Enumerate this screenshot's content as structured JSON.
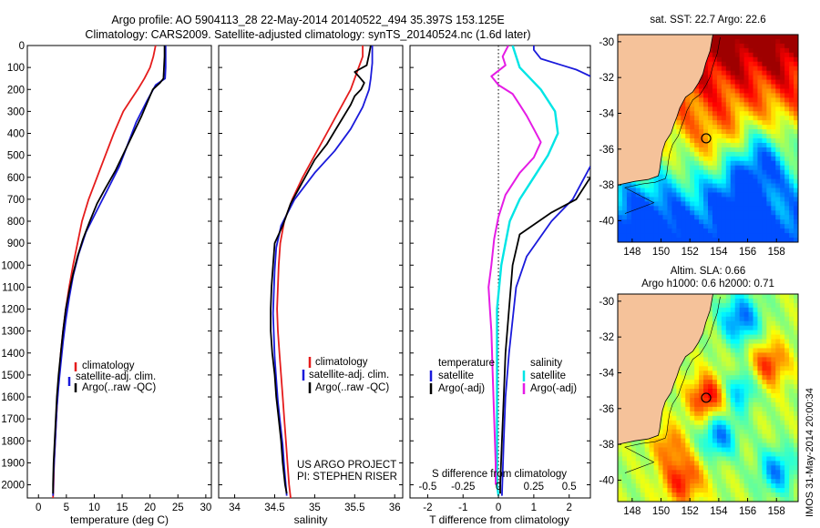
{
  "title_line1": "Argo profile: AO 5904113_28 22-May-2014 20140522_494 35.397S 153.125E",
  "title_line2": "Climatology: CARS2009. Satellite-adjusted climatology: synTS_20140524.nc (1.6d later)",
  "side_stamp": "IMOS 31-May-2014 20:00:34",
  "colors": {
    "climatology": "#e51c1c",
    "satellite": "#1a1adb",
    "argo": "#000000",
    "sal_satellite": "#00e5e5",
    "sal_argo": "#e51ce5",
    "land": "#f5c29a"
  },
  "chart_data": [
    {
      "type": "line",
      "name": "temperature-profile",
      "xlabel": "temperature (deg C)",
      "xticks": [
        "0",
        "5",
        "10",
        "15",
        "20",
        "25",
        "30"
      ],
      "xlim": [
        -2,
        31
      ],
      "ylim": [
        0,
        2060
      ],
      "yticks": [
        "0",
        "100",
        "200",
        "300",
        "400",
        "500",
        "600",
        "700",
        "800",
        "900",
        "1000",
        "1100",
        "1200",
        "1300",
        "1400",
        "1500",
        "1600",
        "1700",
        "1800",
        "1900",
        "2000"
      ],
      "legend": [
        "climatology",
        "satellite-adj. clim.",
        "Argo(..raw -QC)"
      ],
      "series": [
        {
          "name": "climatology",
          "points": [
            [
              21.0,
              0
            ],
            [
              20.6,
              50
            ],
            [
              20.0,
              100
            ],
            [
              19.0,
              150
            ],
            [
              17.8,
              200
            ],
            [
              16.5,
              250
            ],
            [
              15.2,
              300
            ],
            [
              13.5,
              400
            ],
            [
              12.0,
              500
            ],
            [
              10.5,
              600
            ],
            [
              9.0,
              700
            ],
            [
              7.8,
              800
            ],
            [
              7.0,
              900
            ],
            [
              6.2,
              1000
            ],
            [
              5.5,
              1100
            ],
            [
              4.9,
              1200
            ],
            [
              4.4,
              1300
            ],
            [
              4.0,
              1400
            ],
            [
              3.7,
              1500
            ],
            [
              3.4,
              1600
            ],
            [
              3.2,
              1700
            ],
            [
              3.0,
              1800
            ],
            [
              2.8,
              1900
            ],
            [
              2.7,
              2000
            ],
            [
              2.6,
              2060
            ]
          ]
        },
        {
          "name": "satellite-adj. clim.",
          "points": [
            [
              22.8,
              0
            ],
            [
              22.8,
              50
            ],
            [
              22.8,
              100
            ],
            [
              22.7,
              150
            ],
            [
              21.0,
              180
            ],
            [
              19.5,
              250
            ],
            [
              17.5,
              350
            ],
            [
              16.0,
              450
            ],
            [
              14.5,
              550
            ],
            [
              12.5,
              650
            ],
            [
              10.5,
              750
            ],
            [
              8.5,
              850
            ],
            [
              7.2,
              950
            ],
            [
              6.2,
              1050
            ],
            [
              5.5,
              1150
            ],
            [
              4.9,
              1250
            ],
            [
              4.4,
              1350
            ],
            [
              4.0,
              1450
            ],
            [
              3.6,
              1550
            ],
            [
              3.3,
              1650
            ],
            [
              3.1,
              1750
            ],
            [
              2.9,
              1850
            ],
            [
              2.7,
              1950
            ],
            [
              2.6,
              2050
            ]
          ]
        },
        {
          "name": "Argo(..raw -QC)",
          "points": [
            [
              22.6,
              0
            ],
            [
              22.6,
              50
            ],
            [
              22.5,
              100
            ],
            [
              22.4,
              150
            ],
            [
              21.8,
              170
            ],
            [
              20.5,
              200
            ],
            [
              19.5,
              260
            ],
            [
              18.5,
              320
            ],
            [
              17.0,
              400
            ],
            [
              15.5,
              480
            ],
            [
              13.8,
              570
            ],
            [
              12.0,
              650
            ],
            [
              10.5,
              720
            ],
            [
              9.2,
              800
            ],
            [
              8.0,
              880
            ],
            [
              7.0,
              960
            ],
            [
              6.2,
              1040
            ],
            [
              5.5,
              1120
            ],
            [
              4.9,
              1200
            ],
            [
              4.4,
              1300
            ],
            [
              4.0,
              1400
            ],
            [
              3.6,
              1500
            ],
            [
              3.3,
              1600
            ],
            [
              3.1,
              1700
            ],
            [
              2.9,
              1800
            ],
            [
              2.7,
              1900
            ],
            [
              2.6,
              2000
            ],
            [
              2.6,
              2040
            ]
          ]
        }
      ]
    },
    {
      "type": "line",
      "name": "salinity-profile",
      "xlabel": "salinity",
      "xticks": [
        "34",
        "34.5",
        "35",
        "35.5",
        "36"
      ],
      "xlim": [
        33.8,
        36.1
      ],
      "ylim": [
        0,
        2060
      ],
      "legend": [
        "climatology",
        "satellite-adj. clim.",
        "Argo(..raw -QC)"
      ],
      "annotation": [
        "US ARGO PROJECT",
        "PI: STEPHEN RISER"
      ],
      "series": [
        {
          "name": "climatology",
          "points": [
            [
              35.6,
              0
            ],
            [
              35.6,
              50
            ],
            [
              35.55,
              100
            ],
            [
              35.45,
              200
            ],
            [
              35.3,
              300
            ],
            [
              35.15,
              400
            ],
            [
              35.0,
              500
            ],
            [
              34.85,
              600
            ],
            [
              34.72,
              700
            ],
            [
              34.62,
              800
            ],
            [
              34.57,
              900
            ],
            [
              34.55,
              1000
            ],
            [
              34.54,
              1100
            ],
            [
              34.53,
              1200
            ],
            [
              34.54,
              1300
            ],
            [
              34.56,
              1400
            ],
            [
              34.58,
              1500
            ],
            [
              34.6,
              1600
            ],
            [
              34.62,
              1700
            ],
            [
              34.64,
              1800
            ],
            [
              34.66,
              1900
            ],
            [
              34.68,
              2000
            ],
            [
              34.7,
              2060
            ]
          ]
        },
        {
          "name": "satellite-adj. clim.",
          "points": [
            [
              35.72,
              0
            ],
            [
              35.72,
              80
            ],
            [
              35.7,
              150
            ],
            [
              35.68,
              200
            ],
            [
              35.6,
              280
            ],
            [
              35.45,
              380
            ],
            [
              35.25,
              480
            ],
            [
              35.0,
              580
            ],
            [
              34.75,
              700
            ],
            [
              34.58,
              820
            ],
            [
              34.52,
              920
            ],
            [
              34.5,
              1020
            ],
            [
              34.49,
              1120
            ],
            [
              34.48,
              1220
            ],
            [
              34.49,
              1320
            ],
            [
              34.5,
              1420
            ],
            [
              34.52,
              1520
            ],
            [
              34.54,
              1620
            ],
            [
              34.57,
              1720
            ],
            [
              34.6,
              1820
            ],
            [
              34.62,
              1920
            ],
            [
              34.65,
              2050
            ]
          ]
        },
        {
          "name": "Argo(..raw -QC)",
          "points": [
            [
              35.7,
              0
            ],
            [
              35.68,
              40
            ],
            [
              35.65,
              90
            ],
            [
              35.5,
              120
            ],
            [
              35.55,
              140
            ],
            [
              35.62,
              170
            ],
            [
              35.58,
              200
            ],
            [
              35.5,
              230
            ],
            [
              35.45,
              270
            ],
            [
              35.35,
              330
            ],
            [
              35.25,
              390
            ],
            [
              35.15,
              450
            ],
            [
              35.0,
              520
            ],
            [
              34.85,
              620
            ],
            [
              34.7,
              720
            ],
            [
              34.6,
              820
            ],
            [
              34.5,
              900
            ],
            [
              34.48,
              1000
            ],
            [
              34.46,
              1100
            ],
            [
              34.45,
              1200
            ],
            [
              34.45,
              1300
            ],
            [
              34.47,
              1400
            ],
            [
              34.5,
              1500
            ],
            [
              34.52,
              1600
            ],
            [
              34.55,
              1700
            ],
            [
              34.58,
              1800
            ],
            [
              34.6,
              1900
            ],
            [
              34.63,
              2000
            ],
            [
              34.65,
              2040
            ]
          ]
        }
      ]
    },
    {
      "type": "line",
      "name": "difference-profile",
      "xlabel": "T difference from climatology",
      "xticks": [
        "-2",
        "-1",
        "0",
        "1",
        "2"
      ],
      "xlim": [
        -2.5,
        2.6
      ],
      "second_axis_label": "S difference from climatology",
      "second_axis_ticks": [
        "-0.5",
        "-0.25",
        "0",
        "0.25",
        "0.5"
      ],
      "ylim": [
        0,
        2060
      ],
      "legend_left_title": "temperature",
      "legend_left": [
        "satellite",
        "Argo(-adj)"
      ],
      "legend_right_title": "salinity",
      "legend_right": [
        "satellite",
        "Argo(-adj)"
      ],
      "series": [
        {
          "name": "temperature satellite",
          "points": [
            [
              2.6,
              140
            ],
            [
              2.2,
              110
            ],
            [
              1.8,
              90
            ],
            [
              1.2,
              60
            ],
            [
              1.0,
              20
            ],
            [
              1.0,
              0
            ]
          ]
        },
        {
          "name": "temperature satellite deep",
          "points": [
            [
              2.6,
              550
            ],
            [
              2.1,
              700
            ],
            [
              1.5,
              800
            ],
            [
              0.8,
              960
            ],
            [
              0.5,
              1100
            ],
            [
              0.4,
              1250
            ],
            [
              0.3,
              1400
            ],
            [
              0.2,
              1600
            ],
            [
              0.15,
              1800
            ],
            [
              0.1,
              2050
            ]
          ]
        },
        {
          "name": "temperature Argo(-adj)",
          "points": [
            [
              2.6,
              600
            ],
            [
              2.2,
              700
            ],
            [
              1.5,
              760
            ],
            [
              0.6,
              860
            ],
            [
              0.4,
              1000
            ],
            [
              0.3,
              1200
            ],
            [
              0.2,
              1400
            ],
            [
              0.15,
              1600
            ],
            [
              0.1,
              1800
            ],
            [
              0.05,
              2000
            ],
            [
              0.05,
              2040
            ]
          ]
        },
        {
          "name": "salinity satellite",
          "points": [
            [
              0.1,
              0
            ],
            [
              0.15,
              100
            ],
            [
              0.3,
              200
            ],
            [
              0.4,
              300
            ],
            [
              0.42,
              400
            ],
            [
              0.35,
              500
            ],
            [
              0.25,
              600
            ],
            [
              0.15,
              700
            ],
            [
              0.08,
              800
            ],
            [
              0.05,
              900
            ],
            [
              0.02,
              1000
            ],
            [
              -0.01,
              1200
            ],
            [
              -0.01,
              1400
            ],
            [
              -0.01,
              1600
            ],
            [
              -0.01,
              1800
            ],
            [
              -0.01,
              2000
            ],
            [
              0.0,
              2050
            ]
          ]
        },
        {
          "name": "salinity Argo(-adj)",
          "points": [
            [
              0.07,
              0
            ],
            [
              0.03,
              50
            ],
            [
              0.05,
              90
            ],
            [
              -0.05,
              140
            ],
            [
              0.0,
              180
            ],
            [
              0.1,
              220
            ],
            [
              0.15,
              270
            ],
            [
              0.2,
              320
            ],
            [
              0.25,
              380
            ],
            [
              0.3,
              440
            ],
            [
              0.25,
              510
            ],
            [
              0.15,
              580
            ],
            [
              0.05,
              680
            ],
            [
              0.0,
              780
            ],
            [
              -0.03,
              880
            ],
            [
              -0.05,
              1000
            ],
            [
              -0.07,
              1100
            ],
            [
              -0.06,
              1200
            ],
            [
              -0.05,
              1300
            ],
            [
              -0.04,
              1500
            ],
            [
              -0.03,
              1700
            ],
            [
              -0.02,
              1900
            ],
            [
              -0.02,
              2000
            ]
          ]
        }
      ]
    },
    {
      "type": "heatmap",
      "name": "sst-map",
      "title": "sat. SST: 22.7 Argo: 22.6",
      "xticks": [
        "148",
        "150",
        "152",
        "154",
        "156",
        "158"
      ],
      "yticks": [
        "-30",
        "-32",
        "-34",
        "-36",
        "-38",
        "-40"
      ],
      "xlim": [
        147,
        159.5
      ],
      "ylim": [
        -41.2,
        -29.6
      ],
      "profile_location": [
        153.125,
        -35.397
      ]
    },
    {
      "type": "heatmap",
      "name": "sla-map",
      "title": "Altim. SLA: 0.66",
      "subtitle": "Argo h1000: 0.6 h2000: 0.71",
      "xticks": [
        "148",
        "150",
        "152",
        "154",
        "156",
        "158"
      ],
      "yticks": [
        "-30",
        "-32",
        "-34",
        "-36",
        "-38",
        "-40"
      ],
      "xlim": [
        147,
        159.5
      ],
      "ylim": [
        -41.2,
        -29.6
      ],
      "profile_location": [
        153.125,
        -35.397
      ]
    }
  ]
}
